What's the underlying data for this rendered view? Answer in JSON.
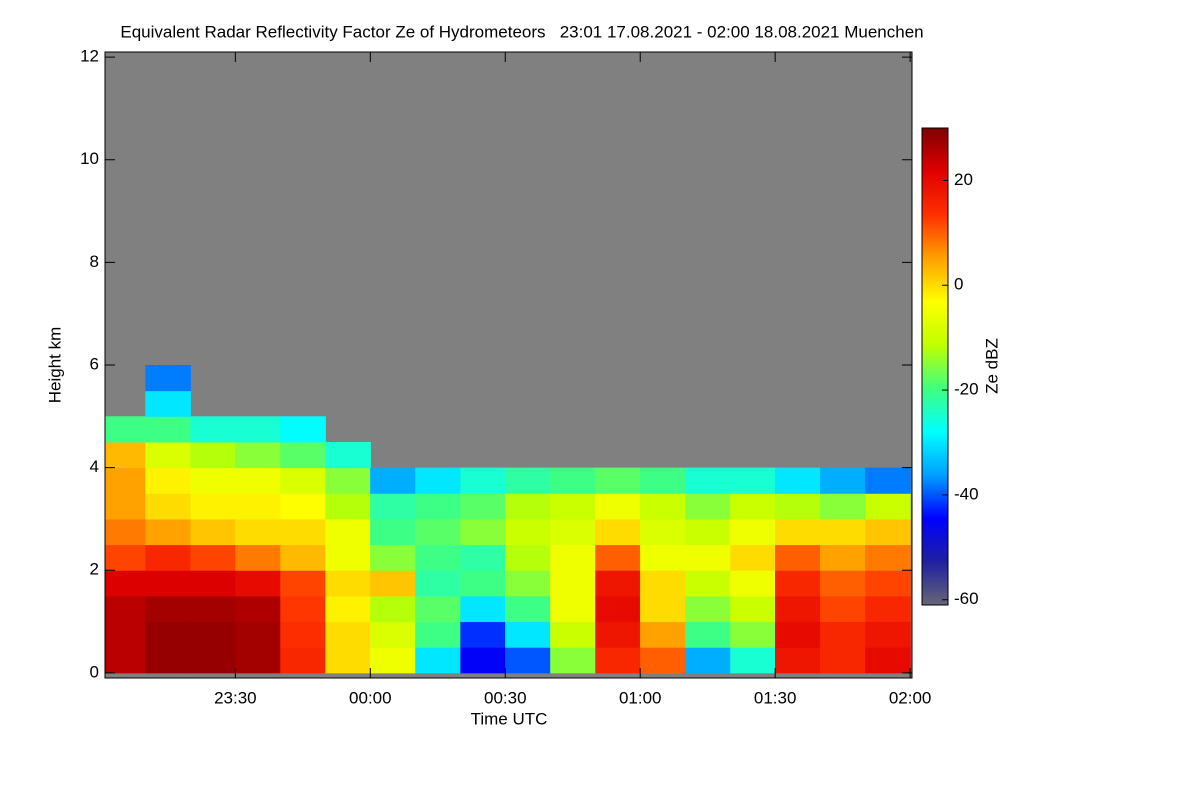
{
  "chart_data": {
    "type": "heatmap",
    "title": "Equivalent Radar Reflectivity Factor Ze of Hydrometeors   23:01 17.08.2021 - 02:00 18.08.2021 Muenchen",
    "x_label": "Time UTC",
    "y_label": "Height km",
    "xlim": [
      23.017,
      26.007
    ],
    "xticks": [
      {
        "value": 23.5,
        "label": "23:30"
      },
      {
        "value": 24,
        "label": "00:00"
      },
      {
        "value": 24.5,
        "label": "00:30"
      },
      {
        "value": 25,
        "label": "01:00"
      },
      {
        "value": 25.5,
        "label": "01:30"
      },
      {
        "value": 26,
        "label": "02:00"
      }
    ],
    "ylim": [
      -0.1,
      12.1
    ],
    "yticks": [
      0,
      2,
      4,
      6,
      8,
      10,
      12
    ],
    "x": [
      23.083,
      23.25,
      23.417,
      23.583,
      23.75,
      23.917,
      24.083,
      24.25,
      24.417,
      24.583,
      24.75,
      24.917,
      25.083,
      25.25,
      25.417,
      25.583,
      25.75,
      25.917
    ],
    "y": [
      0.25,
      0.75,
      1.25,
      1.75,
      2.25,
      2.75,
      3.25,
      3.75,
      4.25,
      4.75,
      5.25,
      5.75
    ],
    "z": [
      [
        25,
        25,
        25,
        22,
        12,
        8,
        5,
        5,
        3,
        -20,
        null,
        null
      ],
      [
        28,
        28,
        27,
        22,
        15,
        5,
        0,
        -2,
        -8,
        -20,
        -30,
        -38
      ],
      [
        28,
        28,
        27,
        22,
        12,
        2,
        -2,
        -5,
        -12,
        -25,
        null,
        null
      ],
      [
        27,
        27,
        26,
        20,
        8,
        0,
        -2,
        -5,
        -15,
        -25,
        null,
        null
      ],
      [
        15,
        14,
        13,
        12,
        3,
        0,
        -3,
        -8,
        -18,
        -28,
        null,
        null
      ],
      [
        0,
        0,
        -2,
        0,
        -5,
        -5,
        -12,
        -15,
        -25,
        null,
        null,
        null
      ],
      [
        -5,
        -8,
        -12,
        2,
        -15,
        -20,
        -22,
        -35,
        null,
        null,
        null,
        null
      ],
      [
        -30,
        -20,
        -18,
        -22,
        -20,
        -18,
        -20,
        -30,
        null,
        null,
        null,
        null
      ],
      [
        -45,
        -42,
        -30,
        -20,
        -22,
        -15,
        -18,
        -25,
        null,
        null,
        null,
        null
      ],
      [
        -40,
        -30,
        -20,
        -15,
        -12,
        -10,
        -12,
        -22,
        null,
        null,
        null,
        null
      ],
      [
        -15,
        -10,
        -5,
        -5,
        -5,
        -8,
        -10,
        -20,
        null,
        null,
        null,
        null
      ],
      [
        15,
        18,
        20,
        18,
        10,
        0,
        -5,
        -18,
        null,
        null,
        null,
        null
      ],
      [
        10,
        5,
        0,
        0,
        -5,
        -8,
        -10,
        -20,
        null,
        null,
        null,
        null
      ],
      [
        -35,
        -20,
        -15,
        -10,
        -5,
        -10,
        -15,
        -25,
        null,
        null,
        null,
        null
      ],
      [
        -25,
        -15,
        -10,
        -5,
        0,
        -5,
        -10,
        -25,
        null,
        null,
        null,
        null
      ],
      [
        18,
        20,
        18,
        15,
        10,
        0,
        -12,
        -30,
        null,
        null,
        null,
        null
      ],
      [
        15,
        15,
        12,
        10,
        5,
        0,
        -15,
        -35,
        null,
        null,
        null,
        null
      ],
      [
        20,
        18,
        15,
        12,
        8,
        2,
        -10,
        -38,
        null,
        null,
        null,
        null
      ]
    ],
    "missing_color": "#808080",
    "colorbar": {
      "label": "Ze dBZ",
      "zlim": [
        -61,
        30
      ],
      "ticks": [
        -60,
        -40,
        -20,
        0,
        20
      ],
      "colors": [
        "#666677",
        "#2020a0",
        "#0000ff",
        "#00a0ff",
        "#00ffff",
        "#40ff80",
        "#c0ff00",
        "#ffff00",
        "#ffa000",
        "#ff3000",
        "#e00000",
        "#800000"
      ]
    }
  }
}
